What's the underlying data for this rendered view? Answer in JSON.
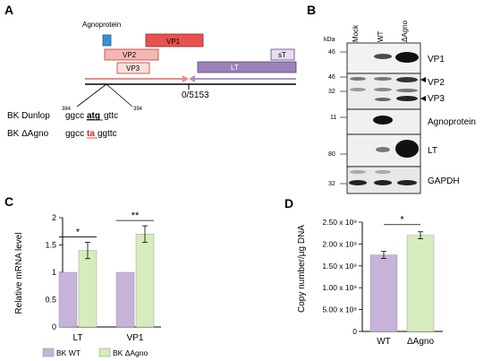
{
  "panels": {
    "A": {
      "letter": "A",
      "genes": {
        "agnoprotein": "Agnoprotein",
        "vp1": "VP1",
        "vp2": "VP2",
        "vp3": "VP3",
        "lt": "LT",
        "st": "sT"
      },
      "genome_position": "0/5153",
      "seq_start": "384",
      "seq_end": "394",
      "dunlop_label": "BK Dunlop",
      "dunlop_seq_pre": "ggcc",
      "dunlop_seq_mid": "atg",
      "dunlop_seq_post": "gttc",
      "agno_label": "BK ΔAgno",
      "agno_seq_pre": "ggcc",
      "agno_seq_mid": "ta",
      "agno_seq_post": "ggttc",
      "colors": {
        "agno_fill": "#3a8fd0",
        "vp1_fill": "#e8524f",
        "vp2_fill": "#f4b8b4",
        "vp3_fill": "#fbe0de",
        "late_stroke": "#c0392b",
        "lt_fill": "#9b82b8",
        "early_stroke": "#5b3f86",
        "mutant_text": "#e02020"
      }
    },
    "B": {
      "letter": "B",
      "kda": "kDa",
      "lanes": [
        "Mock",
        "WT",
        "ΔAgno"
      ],
      "blots": [
        {
          "label": "VP1",
          "markers": [
            "46"
          ]
        },
        {
          "label": "VP2 / VP3",
          "markers": [
            "46",
            "32"
          ],
          "labels": [
            "VP2",
            "VP3"
          ]
        },
        {
          "label": "Agnoprotein",
          "markers": [
            "11"
          ]
        },
        {
          "label": "LT",
          "markers": [
            "80"
          ]
        },
        {
          "label": "GAPDH",
          "markers": [
            "32"
          ]
        }
      ]
    },
    "C": {
      "letter": "C",
      "chart_data": {
        "type": "bar",
        "categories": [
          "LT",
          "VP1"
        ],
        "series": [
          {
            "name": "BK WT",
            "values": [
              1.0,
              1.0
            ],
            "errors": [
              0.0,
              0.0
            ],
            "color": "#c7b3d9"
          },
          {
            "name": "BK ΔAgno",
            "values": [
              1.4,
              1.7
            ],
            "errors": [
              0.15,
              0.15
            ],
            "color": "#d7ecbd"
          }
        ],
        "ylabel": "Relative mRNA level",
        "ylim": [
          0,
          2
        ],
        "yticks": [
          "0",
          "0.5",
          "1",
          "1.5",
          "2"
        ],
        "significance": [
          "*",
          "**"
        ],
        "legend": [
          "BK WT",
          "BK ΔAgno"
        ]
      }
    },
    "D": {
      "letter": "D",
      "chart_data": {
        "type": "bar",
        "categories": [
          "WT",
          "ΔAgno"
        ],
        "values": [
          1750000000.0,
          2200000000.0
        ],
        "errors": [
          80000000.0,
          80000000.0
        ],
        "colors": [
          "#c7b3d9",
          "#d7ecbd"
        ],
        "ylabel": "Copy number/μg DNA",
        "ylim": [
          0,
          2500000000.0
        ],
        "yticks": [
          "0",
          "5.00 x 10⁸",
          "1.00 x 10⁹",
          "1.50 x 10⁹",
          "2.00 x 10⁹",
          "2.50 x 10⁹"
        ],
        "significance": "*"
      }
    }
  }
}
